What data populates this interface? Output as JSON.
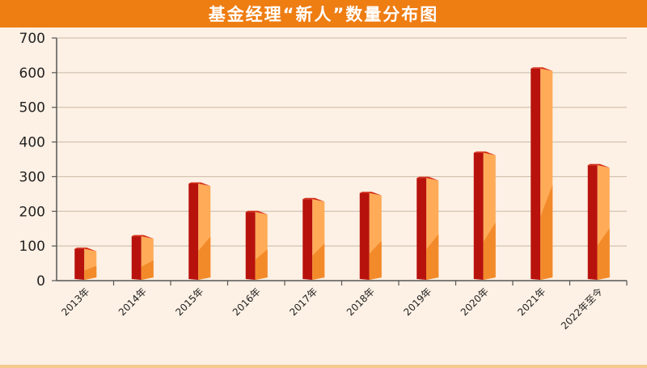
{
  "chart_data": {
    "type": "bar",
    "title": "基金经理“新人”数量分布图",
    "xlabel": "",
    "ylabel": "",
    "categories": [
      "2013年",
      "2014年",
      "2015年",
      "2016年",
      "2017年",
      "2018年",
      "2019年",
      "2020年",
      "2021年",
      "2022年至今"
    ],
    "values": [
      92,
      128,
      280,
      198,
      235,
      253,
      296,
      369,
      612,
      333
    ],
    "ylim": [
      0,
      700
    ],
    "yticks": [
      0,
      100,
      200,
      300,
      400,
      500,
      600,
      700
    ],
    "grid": true,
    "legend": "none"
  },
  "colors": {
    "title_bar": "#ee7d12",
    "title_text": "#ffffff",
    "background": "#fdf0e4",
    "bar_front": "#b8120c",
    "bar_side": "#ffab57",
    "bar_side_lower": "#f28a2a",
    "bar_top": "#d42a14",
    "gridline": "#c9b9a6",
    "axis": "#555555"
  }
}
